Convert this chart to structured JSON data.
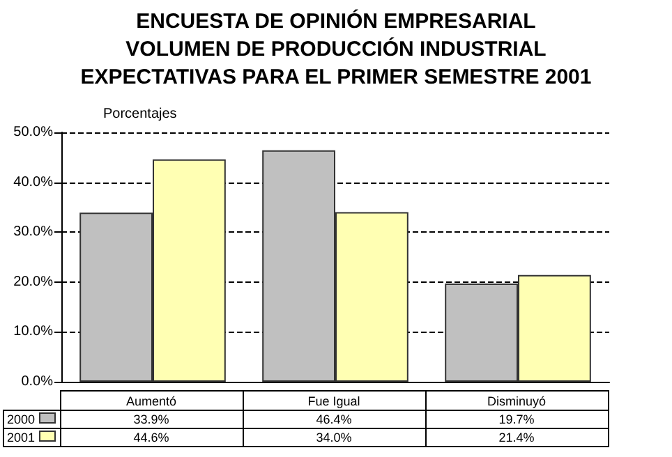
{
  "chart_data": {
    "type": "bar",
    "title": "ENCUESTA DE OPINIÓN EMPRESARIAL\nVOLUMEN DE PRODUCCIÓN INDUSTRIAL\nEXPECTATIVAS PARA EL PRIMER SEMESTRE 2001",
    "ylabel": "Porcentajes",
    "categories": [
      "Aumentó",
      "Fue Igual",
      "Disminuyó"
    ],
    "series": [
      {
        "name": "2000",
        "color": "#c0c0c0",
        "values": [
          33.9,
          46.4,
          19.7
        ],
        "value_labels": [
          "33.9%",
          "46.4%",
          "19.7%"
        ]
      },
      {
        "name": "2001",
        "color": "#ffffb3",
        "values": [
          44.6,
          34.0,
          21.4
        ],
        "value_labels": [
          "44.6%",
          "34.0%",
          "21.4%"
        ]
      }
    ],
    "ylim": [
      0,
      50
    ],
    "yticks": [
      {
        "value": 0,
        "label": "0.0%"
      },
      {
        "value": 10,
        "label": "10.0%"
      },
      {
        "value": 20,
        "label": "20.0%"
      },
      {
        "value": 30,
        "label": "30.0%"
      },
      {
        "value": 40,
        "label": "40.0%"
      },
      {
        "value": 50,
        "label": "50.0%"
      }
    ],
    "grid": "y",
    "legend": "bottom"
  }
}
